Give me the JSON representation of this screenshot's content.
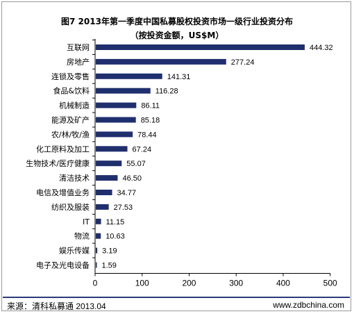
{
  "title": "图7 2013年第一季度中国私募股权投资市场一级行业投资分布",
  "subtitle": "（按投资金额，US$M）",
  "footer": {
    "source": "来源：清科私募通 2013.04",
    "site": "www.zdbchina.com"
  },
  "colors": {
    "bar": "#1f2f6e",
    "axis": "#000000"
  },
  "chart_data": {
    "type": "bar",
    "orientation": "horizontal",
    "categories": [
      "互联网",
      "房地产",
      "连锁及零售",
      "食品&饮料",
      "机械制造",
      "能源及矿产",
      "农/林/牧/渔",
      "化工原料及加工",
      "生物技术/医疗健康",
      "清洁技术",
      "电信及增值业务",
      "纺织及服装",
      "IT",
      "物流",
      "娱乐传媒",
      "电子及光电设备"
    ],
    "values": [
      444.32,
      277.24,
      141.31,
      116.28,
      86.11,
      85.18,
      78.44,
      67.24,
      55.07,
      46.5,
      34.77,
      27.53,
      11.15,
      10.63,
      3.19,
      1.59
    ],
    "value_labels": [
      "444.32",
      "277.24",
      "141.31",
      "116.28",
      "86.11",
      "85.18",
      "78.44",
      "67.24",
      "55.07",
      "46.50",
      "34.77",
      "27.53",
      "11.15",
      "10.63",
      "3.19",
      "1.59"
    ],
    "xlim": [
      0,
      500
    ],
    "xticks": [
      0,
      100,
      200,
      300,
      400,
      500
    ],
    "grid": false,
    "legend": "none"
  }
}
